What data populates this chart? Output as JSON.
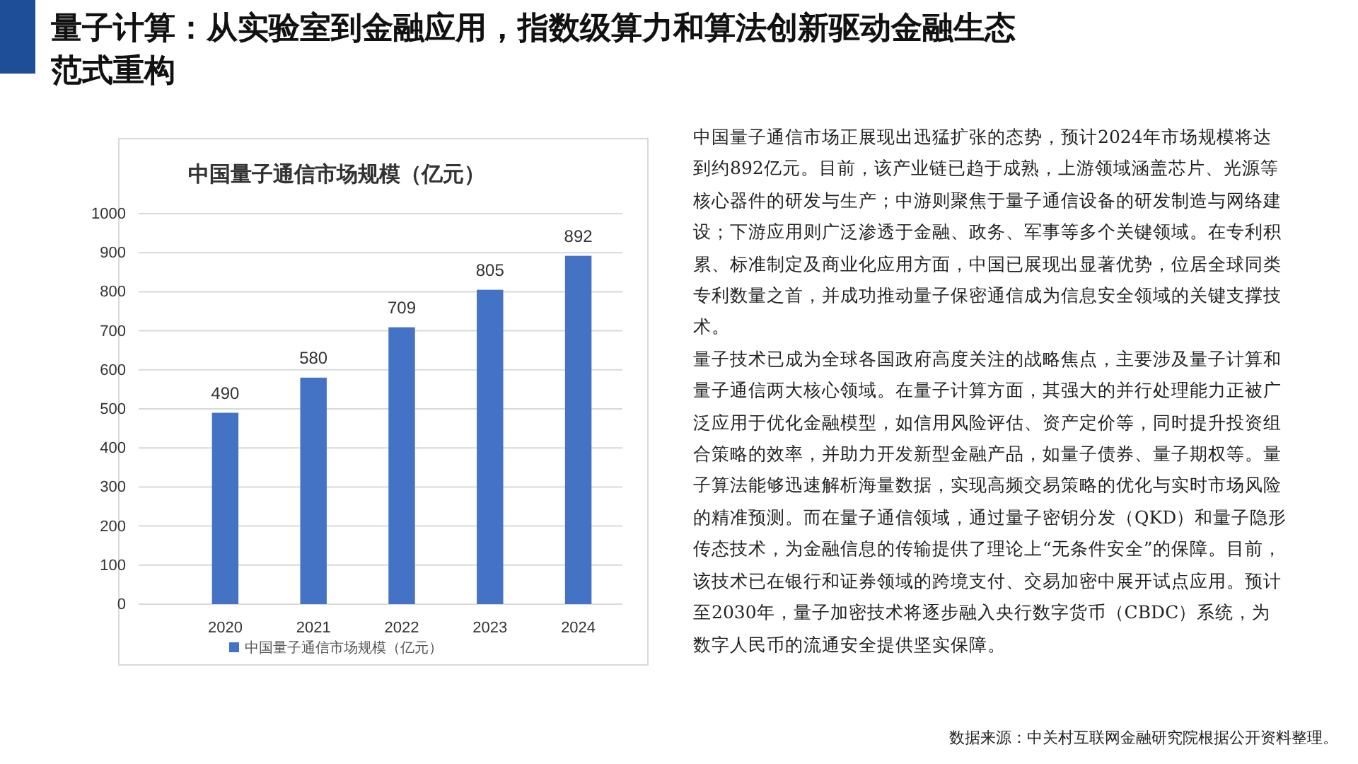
{
  "chart_data": {
    "type": "bar",
    "subtitle": "量子计算：从实验室到金融应用，指数级算力和算法创新驱动金融生态范式重构",
    "title": "中国量子通信市场规模（亿元）",
    "categories": [
      "2020",
      "2021",
      "2022",
      "2023",
      "2024"
    ],
    "series": [
      {
        "name": "中国量子通信市场规模（亿元）",
        "color": "#4472c4",
        "values": [
          490,
          580,
          709,
          805,
          892
        ]
      }
    ],
    "ylim": [
      0,
      1000
    ],
    "yticks": [
      0,
      100,
      200,
      300,
      400,
      500,
      600,
      700,
      800,
      900,
      1000
    ],
    "grid": "y",
    "legend": "bottom",
    "data_labels": true,
    "annotations": [
      "中国量子通信市场正展现出迅猛扩张的态势，预计2024年市场规模将达到约892亿元。目前，该产业链已趋于成熟，上游领域涵盖芯片、光源等核心器件的研发与生产；中游则聚焦于量子通信设备的研发制造与网络建设；下游应用则广泛渗透于金融、政务、军事等多个关键领域。在专利积累、标准制定及商业化应用方面，中国已展现出显著优势，位居全球同类专利数量之首，并成功推动量子保密通信成为信息安全领域的关键支撑技术。",
      "量子技术已成为全球各国政府高度关注的战略焦点，主要涉及量子计算和量子通信两大核心领域。在量子计算方面，其强大的并行处理能力正被广泛应用于优化金融模型，如信用风险评估、资产定价等，同时提升投资组合策略的效率，并助力开发新型金融产品，如量子债券、量子期权等。量子算法能够迅速解析海量数据，实现高频交易策略的优化与实时市场风险的精准预测。而在量子通信领域，通过量子密钥分发（QKD）和量子隐形传态技术，为金融信息的传输提供了理论上“无条件安全”的保障。目前，该技术已在银行和证券领域的跨境支付、交易加密中展开试点应用。预计至2030年，量子加密技术将逐步融入央行数字货币（CBDC）系统，为数字人民币的流通安全提供坚实保障。",
      "数据来源：中关村互联网金融研究院根据公开资料整理。"
    ]
  }
}
